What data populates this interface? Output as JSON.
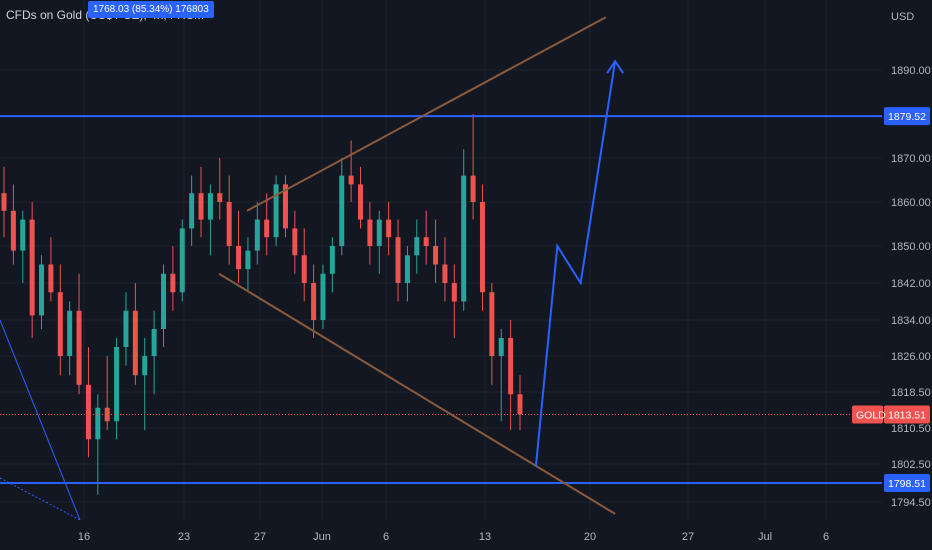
{
  "header": {
    "title": "CFDs on Gold (US$ / OZ), 4h, FXCM",
    "tooltip": "1768.03 (85.34%) 176803"
  },
  "axis": {
    "currency": "USD",
    "price_ticks": [
      "1890.00",
      "1870.00",
      "1860.00",
      "1850.00",
      "1842.00",
      "1834.00",
      "1826.00",
      "1818.50",
      "1810.50",
      "1802.50",
      "1794.50"
    ],
    "date_ticks": [
      "16",
      "23",
      "27",
      "Jun",
      "6",
      "13",
      "20",
      "27",
      "Jul",
      "6"
    ]
  },
  "levels": {
    "resistance": "1879.52",
    "support": "1798.51",
    "current_symbol": "GOLD",
    "current_price": "1813.51"
  },
  "colors": {
    "background": "#131722",
    "bull": "#26a69a",
    "bear": "#ef5350",
    "level_line": "#2962ff",
    "trend_line": "#8b5a3c",
    "projection": "#2962ff",
    "current_price_tag": "#ef5350"
  },
  "chart_data": {
    "type": "candlestick",
    "symbol": "GOLD",
    "timeframe": "4h",
    "y_axis_label": "USD",
    "x_ticks": [
      "16",
      "23",
      "27",
      "Jun",
      "6",
      "13",
      "20",
      "27",
      "Jul",
      "6"
    ],
    "horizontal_levels": [
      1879.52,
      1798.51
    ],
    "current_price": 1813.51,
    "candles": [
      [
        1862,
        1868,
        1852,
        1858
      ],
      [
        1858,
        1864,
        1846,
        1849
      ],
      [
        1849,
        1858,
        1842,
        1856
      ],
      [
        1856,
        1860,
        1830,
        1835
      ],
      [
        1835,
        1848,
        1832,
        1846
      ],
      [
        1846,
        1852,
        1838,
        1840
      ],
      [
        1840,
        1846,
        1822,
        1826
      ],
      [
        1826,
        1838,
        1822,
        1836
      ],
      [
        1836,
        1844,
        1818,
        1820
      ],
      [
        1820,
        1828,
        1804,
        1808
      ],
      [
        1808,
        1818,
        1796,
        1815
      ],
      [
        1815,
        1826,
        1810,
        1812
      ],
      [
        1812,
        1830,
        1808,
        1828
      ],
      [
        1828,
        1840,
        1824,
        1836
      ],
      [
        1836,
        1842,
        1820,
        1822
      ],
      [
        1822,
        1830,
        1810,
        1826
      ],
      [
        1826,
        1836,
        1818,
        1832
      ],
      [
        1832,
        1846,
        1828,
        1844
      ],
      [
        1844,
        1850,
        1836,
        1840
      ],
      [
        1840,
        1856,
        1838,
        1854
      ],
      [
        1854,
        1866,
        1850,
        1862
      ],
      [
        1862,
        1868,
        1852,
        1856
      ],
      [
        1856,
        1864,
        1848,
        1862
      ],
      [
        1862,
        1870,
        1856,
        1860
      ],
      [
        1860,
        1866,
        1846,
        1850
      ],
      [
        1850,
        1858,
        1842,
        1845
      ],
      [
        1845,
        1852,
        1840,
        1849
      ],
      [
        1849,
        1860,
        1846,
        1856
      ],
      [
        1856,
        1862,
        1848,
        1852
      ],
      [
        1852,
        1866,
        1850,
        1864
      ],
      [
        1864,
        1866,
        1852,
        1854
      ],
      [
        1854,
        1858,
        1844,
        1848
      ],
      [
        1848,
        1854,
        1838,
        1842
      ],
      [
        1842,
        1846,
        1830,
        1834
      ],
      [
        1834,
        1846,
        1832,
        1844
      ],
      [
        1844,
        1852,
        1840,
        1850
      ],
      [
        1850,
        1870,
        1848,
        1866
      ],
      [
        1866,
        1874,
        1860,
        1864
      ],
      [
        1864,
        1868,
        1854,
        1856
      ],
      [
        1856,
        1860,
        1846,
        1850
      ],
      [
        1850,
        1858,
        1844,
        1856
      ],
      [
        1856,
        1860,
        1848,
        1852
      ],
      [
        1852,
        1856,
        1838,
        1842
      ],
      [
        1842,
        1850,
        1838,
        1848
      ],
      [
        1848,
        1856,
        1844,
        1852
      ],
      [
        1852,
        1858,
        1846,
        1850
      ],
      [
        1850,
        1856,
        1842,
        1846
      ],
      [
        1846,
        1852,
        1838,
        1842
      ],
      [
        1842,
        1846,
        1830,
        1838
      ],
      [
        1838,
        1872,
        1836,
        1866
      ],
      [
        1866,
        1880,
        1856,
        1860
      ],
      [
        1860,
        1864,
        1836,
        1840
      ],
      [
        1840,
        1842,
        1820,
        1826
      ],
      [
        1826,
        1832,
        1812,
        1830
      ],
      [
        1830,
        1834,
        1810,
        1818
      ],
      [
        1818,
        1822,
        1810,
        1813.51
      ]
    ],
    "trend_lines": [
      {
        "from": [
          0.265,
          1858
        ],
        "to": [
          0.65,
          1902
        ]
      },
      {
        "from": [
          0.235,
          1844
        ],
        "to": [
          0.66,
          1792
        ]
      }
    ],
    "projection_path": [
      [
        0.575,
        1802
      ],
      [
        0.598,
        1850
      ],
      [
        0.623,
        1842
      ],
      [
        0.66,
        1892
      ]
    ]
  }
}
